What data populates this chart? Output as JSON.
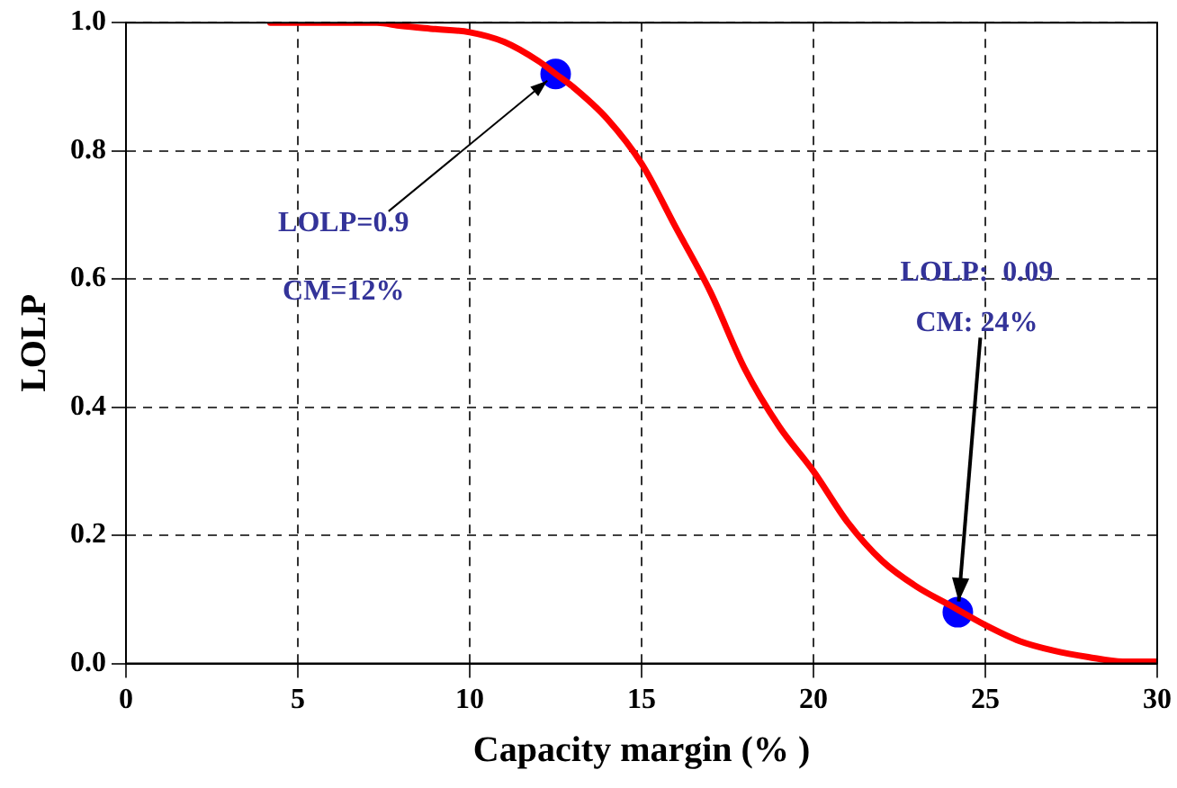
{
  "chart_data": {
    "type": "line",
    "xlabel": "Capacity margin (% )",
    "ylabel": "LOLP",
    "series": [
      {
        "marker": "none",
        "color": "#ff0000",
        "x": [
          4.2,
          5,
          6,
          7.3,
          8,
          9,
          10,
          11,
          12,
          12.5,
          13,
          14,
          15,
          16,
          17,
          18,
          19,
          20,
          21,
          22,
          23,
          24,
          25,
          26,
          27,
          28,
          29,
          30
        ],
        "values": [
          1.0,
          1.0,
          1.0,
          1.0,
          0.995,
          0.99,
          0.985,
          0.97,
          0.94,
          0.92,
          0.9,
          0.85,
          0.78,
          0.68,
          0.58,
          0.46,
          0.37,
          0.3,
          0.22,
          0.16,
          0.12,
          0.09,
          0.06,
          0.035,
          0.02,
          0.01,
          0.003,
          0.003
        ]
      },
      {
        "type": "scatter",
        "marker": "circle",
        "color": "#0000ff",
        "x": [
          12.5,
          24.2
        ],
        "values": [
          0.92,
          0.08
        ]
      }
    ],
    "xlim": [
      0,
      30
    ],
    "xticks": [
      0,
      5,
      10,
      15,
      20,
      25,
      30
    ],
    "ylim": [
      0,
      1
    ],
    "yticks": [
      {
        "value": 0,
        "label": "0.0"
      },
      {
        "value": 0.2,
        "label": "0.2"
      },
      {
        "value": 0.4,
        "label": "0.4"
      },
      {
        "value": 0.6,
        "label": "0.6"
      },
      {
        "value": 0.8,
        "label": "0.8"
      },
      {
        "value": 1,
        "label": "1.0"
      }
    ],
    "grid": true,
    "line_style": "solid",
    "legend": false,
    "annotations": [
      {
        "text": "LOLP=0.9",
        "x": 12.5,
        "y": 0.92
      },
      "CM=12%",
      "LOLP:  0.09",
      {
        "text": "CM: 24%",
        "x": 24.2,
        "y": 0.08
      }
    ]
  }
}
